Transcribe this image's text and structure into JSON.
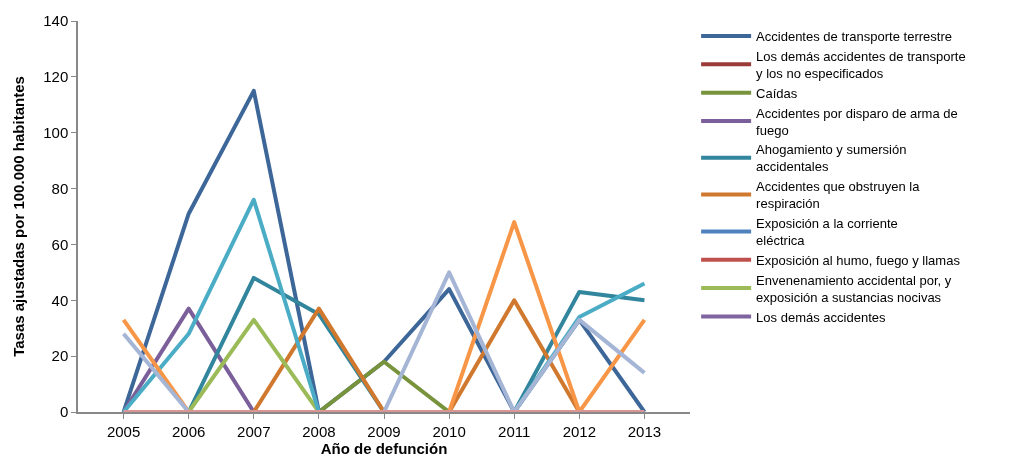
{
  "chart_data": {
    "type": "line",
    "xlabel": "Año de defunción",
    "ylabel": "Tasas ajustadas por 100.000 habitantes",
    "categories": [
      "2005",
      "2006",
      "2007",
      "2008",
      "2009",
      "2010",
      "2011",
      "2012",
      "2013"
    ],
    "ylim": [
      0,
      140
    ],
    "yticks": [
      0,
      20,
      40,
      60,
      80,
      100,
      120,
      140
    ],
    "grid": false,
    "legend": "right",
    "marker": "none",
    "line_style": "solid",
    "series": [
      {
        "name": "Accidentes de transporte terrestre",
        "color": "#3d6699",
        "values": [
          0,
          71,
          115,
          0,
          18,
          44,
          0,
          33,
          0
        ]
      },
      {
        "name": "Los demás accidentes de transporte y los no especificados",
        "color": "#9b3b38",
        "values": [
          null,
          null,
          null,
          null,
          null,
          null,
          null,
          null,
          null
        ]
      },
      {
        "name": "Caídas",
        "color": "#77933c",
        "values": [
          null,
          null,
          null,
          0,
          18,
          0,
          null,
          null,
          null
        ]
      },
      {
        "name": "Accidentes por disparo de arma de fuego",
        "color": "#7b5f9a",
        "values": [
          0,
          37,
          0,
          null,
          null,
          null,
          null,
          null,
          null
        ]
      },
      {
        "name": "Ahogamiento y sumersión accidentales",
        "color": "#31859c",
        "values": [
          null,
          0,
          48,
          35,
          0,
          null,
          0,
          43,
          40
        ]
      },
      {
        "name": "Accidentes que obstruyen la respiración",
        "color": "#d0782e",
        "values": [
          null,
          null,
          0,
          37,
          0,
          0,
          40,
          0,
          null
        ]
      },
      {
        "name": "Exposición a la corriente eléctrica",
        "color": "#4f81bd",
        "values": [
          null,
          null,
          null,
          null,
          null,
          null,
          null,
          null,
          null
        ]
      },
      {
        "name": "Exposición al humo, fuego y llamas",
        "color": "#c0504d",
        "values": [
          null,
          null,
          null,
          null,
          null,
          null,
          null,
          null,
          null
        ]
      },
      {
        "name": "Envenenamiento accidental por, y exposición a sustancias nocivas",
        "color": "#9bbb59",
        "values": [
          null,
          0,
          33,
          0,
          null,
          null,
          null,
          null,
          null
        ]
      },
      {
        "name": "Los demás accidentes",
        "color": "#8064a2",
        "values": [
          null,
          null,
          null,
          null,
          null,
          null,
          null,
          null,
          null
        ]
      },
      {
        "color": "#4bacc6",
        "values": [
          0,
          28,
          76,
          0,
          null,
          null,
          0,
          34,
          46
        ]
      },
      {
        "color": "#f79646",
        "values": [
          33,
          0,
          null,
          null,
          null,
          0,
          68,
          0,
          33
        ]
      },
      {
        "color": "#a5b5d5",
        "values": [
          28,
          0,
          null,
          null,
          0,
          50,
          0,
          33,
          14
        ]
      },
      {
        "color": "#d99694",
        "values": [
          0,
          0,
          0,
          0,
          0,
          0,
          0,
          0,
          0
        ]
      }
    ]
  }
}
